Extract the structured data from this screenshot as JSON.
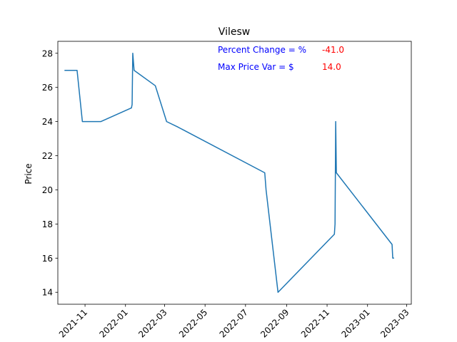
{
  "chart_data": {
    "type": "line",
    "title": "Vilesw",
    "xlabel": "",
    "ylabel": "Price",
    "x_axis_type": "date",
    "xlim": [
      "2021-09-21",
      "2023-03-08"
    ],
    "ylim": [
      13.3,
      28.7
    ],
    "y_ticks": [
      14,
      16,
      18,
      20,
      22,
      24,
      26,
      28
    ],
    "x_ticks": [
      "2021-11",
      "2022-01",
      "2022-03",
      "2022-05",
      "2022-07",
      "2022-09",
      "2022-11",
      "2023-01",
      "2023-03"
    ],
    "grid": false,
    "line_color": "#1f77b4",
    "series": [
      {
        "points": [
          [
            "2021-10-01",
            27.0
          ],
          [
            "2021-10-20",
            27.0
          ],
          [
            "2021-10-28",
            24.0
          ],
          [
            "2021-11-25",
            24.0
          ],
          [
            "2022-01-10",
            24.8
          ],
          [
            "2022-01-11",
            25.0
          ],
          [
            "2022-01-12",
            28.0
          ],
          [
            "2022-01-14",
            27.0
          ],
          [
            "2022-02-15",
            26.1
          ],
          [
            "2022-03-04",
            24.0
          ],
          [
            "2022-03-20",
            23.7
          ],
          [
            "2022-07-30",
            21.0
          ],
          [
            "2022-08-01",
            20.0
          ],
          [
            "2022-08-19",
            14.0
          ],
          [
            "2022-11-12",
            17.4
          ],
          [
            "2022-11-13",
            18.0
          ],
          [
            "2022-11-14",
            24.0
          ],
          [
            "2022-11-15",
            21.0
          ],
          [
            "2023-02-07",
            16.8
          ],
          [
            "2023-02-08",
            16.0
          ],
          [
            "2023-02-10",
            16.0
          ]
        ]
      }
    ],
    "annotations": [
      {
        "label": "Percent Change = %",
        "value": "-41.0",
        "label_color": "#0000ff",
        "value_color": "#ff0000"
      },
      {
        "label": "Max Price Var = $",
        "value": "14.0",
        "label_color": "#0000ff",
        "value_color": "#ff0000"
      }
    ]
  }
}
